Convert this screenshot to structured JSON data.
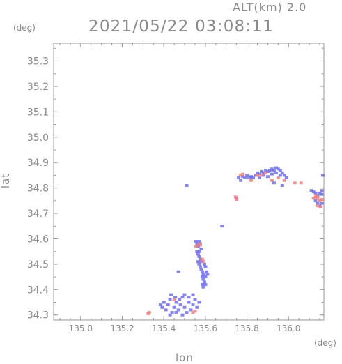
{
  "header": {
    "altitude_label": "ALT(km) 2.0",
    "timestamp": "2021/05/22 03:08:11"
  },
  "chart_data": {
    "type": "scatter",
    "xlabel": "lon",
    "ylabel": "lat",
    "x_unit": "(deg)",
    "y_unit": "(deg)",
    "xlim": [
      134.87,
      136.17
    ],
    "ylim": [
      34.28,
      35.37
    ],
    "xticks": [
      "135.0",
      "135.2",
      "135.4",
      "135.6",
      "135.8",
      "136.0"
    ],
    "yticks": [
      "34.3",
      "34.4",
      "34.5",
      "34.6",
      "34.7",
      "34.8",
      "34.9",
      "35.0",
      "35.1",
      "35.2",
      "35.3"
    ],
    "colors": {
      "approach": "#6e6ef0",
      "recede": "#f08080",
      "axis": "#9a9a9a"
    },
    "series": [
      {
        "color_key": "approach",
        "points": [
          [
            135.384,
            34.34
          ],
          [
            135.392,
            34.33
          ],
          [
            135.4,
            34.35
          ],
          [
            135.41,
            34.32
          ],
          [
            135.42,
            34.34
          ],
          [
            135.43,
            34.36
          ],
          [
            135.44,
            34.31
          ],
          [
            135.45,
            34.33
          ],
          [
            135.46,
            34.35
          ],
          [
            135.47,
            34.32
          ],
          [
            135.48,
            34.34
          ],
          [
            135.49,
            34.37
          ],
          [
            135.5,
            34.33
          ],
          [
            135.51,
            34.31
          ],
          [
            135.52,
            34.35
          ],
          [
            135.53,
            34.32
          ],
          [
            135.54,
            34.34
          ],
          [
            135.55,
            34.36
          ],
          [
            135.56,
            34.33
          ],
          [
            135.57,
            34.35
          ],
          [
            135.435,
            34.38
          ],
          [
            135.455,
            34.37
          ],
          [
            135.475,
            34.36
          ],
          [
            135.5,
            34.38
          ],
          [
            135.52,
            34.37
          ],
          [
            135.54,
            34.38
          ],
          [
            135.46,
            34.31
          ],
          [
            135.49,
            34.3
          ],
          [
            135.43,
            34.3
          ],
          [
            135.555,
            34.59
          ],
          [
            135.56,
            34.58
          ],
          [
            135.565,
            34.57
          ],
          [
            135.57,
            34.59
          ],
          [
            135.575,
            34.58
          ],
          [
            135.56,
            34.55
          ],
          [
            135.565,
            34.54
          ],
          [
            135.57,
            34.53
          ],
          [
            135.575,
            34.52
          ],
          [
            135.58,
            34.51
          ],
          [
            135.57,
            34.5
          ],
          [
            135.575,
            34.49
          ],
          [
            135.58,
            34.48
          ],
          [
            135.585,
            34.47
          ],
          [
            135.59,
            34.46
          ],
          [
            135.585,
            34.45
          ],
          [
            135.59,
            34.44
          ],
          [
            135.595,
            34.43
          ],
          [
            135.6,
            34.42
          ],
          [
            135.59,
            34.41
          ],
          [
            135.595,
            34.5
          ],
          [
            135.6,
            34.49
          ],
          [
            135.605,
            34.47
          ],
          [
            135.61,
            34.46
          ],
          [
            135.565,
            34.51
          ],
          [
            135.58,
            34.56
          ],
          [
            135.57,
            34.55
          ],
          [
            135.6,
            34.45
          ],
          [
            135.585,
            34.42
          ],
          [
            135.76,
            34.84
          ],
          [
            135.77,
            34.83
          ],
          [
            135.78,
            34.845
          ],
          [
            135.79,
            34.84
          ],
          [
            135.8,
            34.85
          ],
          [
            135.81,
            34.84
          ],
          [
            135.82,
            34.845
          ],
          [
            135.83,
            34.84
          ],
          [
            135.84,
            34.85
          ],
          [
            135.85,
            34.86
          ],
          [
            135.86,
            34.855
          ],
          [
            135.87,
            34.865
          ],
          [
            135.88,
            34.86
          ],
          [
            135.89,
            34.87
          ],
          [
            135.9,
            34.865
          ],
          [
            135.91,
            34.87
          ],
          [
            135.92,
            34.875
          ],
          [
            135.93,
            34.87
          ],
          [
            135.94,
            34.88
          ],
          [
            135.95,
            34.875
          ],
          [
            135.96,
            34.87
          ],
          [
            135.97,
            34.86
          ],
          [
            135.98,
            34.85
          ],
          [
            135.99,
            34.84
          ],
          [
            135.86,
            34.84
          ],
          [
            135.88,
            34.85
          ],
          [
            135.9,
            34.845
          ],
          [
            135.92,
            34.855
          ],
          [
            135.94,
            34.86
          ],
          [
            135.96,
            34.85
          ],
          [
            135.93,
            34.82
          ],
          [
            135.97,
            34.81
          ],
          [
            136.11,
            34.79
          ],
          [
            136.12,
            34.785
          ],
          [
            136.13,
            34.78
          ],
          [
            136.14,
            34.77
          ],
          [
            136.15,
            34.78
          ],
          [
            136.16,
            34.775
          ],
          [
            136.13,
            34.75
          ],
          [
            136.14,
            34.74
          ],
          [
            136.15,
            34.73
          ],
          [
            136.16,
            34.74
          ],
          [
            136.165,
            34.85
          ],
          [
            136.16,
            34.79
          ],
          [
            135.51,
            34.81
          ],
          [
            135.68,
            34.65
          ],
          [
            135.75,
            34.76
          ],
          [
            135.47,
            34.47
          ]
        ]
      },
      {
        "color_key": "recede",
        "points": [
          [
            135.33,
            34.31
          ],
          [
            135.325,
            34.305
          ],
          [
            135.57,
            34.58
          ],
          [
            135.575,
            34.575
          ],
          [
            135.555,
            34.57
          ],
          [
            135.585,
            34.52
          ],
          [
            135.59,
            34.51
          ],
          [
            135.54,
            34.31
          ],
          [
            135.55,
            34.315
          ],
          [
            135.45,
            34.36
          ],
          [
            135.745,
            34.765
          ],
          [
            135.75,
            34.755
          ],
          [
            135.77,
            34.85
          ],
          [
            135.78,
            34.855
          ],
          [
            135.82,
            34.83
          ],
          [
            135.85,
            34.85
          ],
          [
            135.87,
            34.85
          ],
          [
            135.92,
            34.83
          ],
          [
            135.95,
            34.84
          ],
          [
            135.98,
            34.83
          ],
          [
            136.03,
            34.82
          ],
          [
            136.06,
            34.82
          ],
          [
            135.89,
            34.86
          ],
          [
            136.12,
            34.76
          ],
          [
            136.13,
            34.765
          ],
          [
            136.14,
            34.76
          ],
          [
            136.15,
            34.75
          ],
          [
            136.16,
            34.755
          ],
          [
            136.14,
            34.73
          ],
          [
            136.155,
            34.725
          ],
          [
            136.135,
            34.77
          ]
        ]
      }
    ]
  }
}
